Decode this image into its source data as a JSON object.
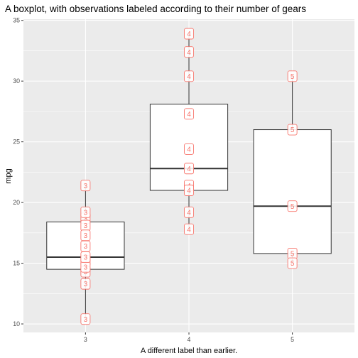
{
  "chart_data": {
    "type": "boxplot",
    "title": "A boxplot, with observations labeled according to their number of gears",
    "xlabel": "A different label than earlier.",
    "ylabel": "mpg",
    "categories": [
      "3",
      "4",
      "5"
    ],
    "yticks": [
      10,
      15,
      20,
      25,
      30,
      35
    ],
    "ylim": [
      9.3,
      35.1
    ],
    "grid": true,
    "label_color": "#f8766d",
    "panel_color": "#ebebeb",
    "boxes": [
      {
        "category": "3",
        "min": 10.4,
        "q1": 14.5,
        "median": 15.5,
        "q3": 18.4,
        "max": 21.5
      },
      {
        "category": "4",
        "min": 17.8,
        "q1": 21.0,
        "median": 22.8,
        "q3": 28.1,
        "max": 33.9
      },
      {
        "category": "5",
        "min": 15.0,
        "q1": 15.8,
        "median": 19.7,
        "q3": 26.0,
        "max": 30.4
      }
    ],
    "points": [
      {
        "category": "3",
        "value": 21.4,
        "label": "3"
      },
      {
        "category": "3",
        "value": 18.7,
        "label": "3"
      },
      {
        "category": "3",
        "value": 18.1,
        "label": "3"
      },
      {
        "category": "3",
        "value": 14.3,
        "label": "3"
      },
      {
        "category": "3",
        "value": 16.4,
        "label": "3"
      },
      {
        "category": "3",
        "value": 17.3,
        "label": "3"
      },
      {
        "category": "3",
        "value": 15.2,
        "label": "3"
      },
      {
        "category": "3",
        "value": 10.4,
        "label": "3"
      },
      {
        "category": "3",
        "value": 14.7,
        "label": "3"
      },
      {
        "category": "3",
        "value": 15.5,
        "label": "3"
      },
      {
        "category": "3",
        "value": 13.3,
        "label": "3"
      },
      {
        "category": "3",
        "value": 19.2,
        "label": "3"
      },
      {
        "category": "4",
        "value": 33.9,
        "label": "4"
      },
      {
        "category": "4",
        "value": 32.4,
        "label": "4"
      },
      {
        "category": "4",
        "value": 30.4,
        "label": "4"
      },
      {
        "category": "4",
        "value": 27.3,
        "label": "4"
      },
      {
        "category": "4",
        "value": 24.4,
        "label": "4"
      },
      {
        "category": "4",
        "value": 22.8,
        "label": "4"
      },
      {
        "category": "4",
        "value": 21.4,
        "label": "4"
      },
      {
        "category": "4",
        "value": 21.0,
        "label": "4"
      },
      {
        "category": "4",
        "value": 19.2,
        "label": "4"
      },
      {
        "category": "4",
        "value": 17.8,
        "label": "4"
      },
      {
        "category": "5",
        "value": 30.4,
        "label": "5"
      },
      {
        "category": "5",
        "value": 26.0,
        "label": "5"
      },
      {
        "category": "5",
        "value": 19.7,
        "label": "5"
      },
      {
        "category": "5",
        "value": 15.8,
        "label": "5"
      },
      {
        "category": "5",
        "value": 15.0,
        "label": "5"
      }
    ]
  }
}
